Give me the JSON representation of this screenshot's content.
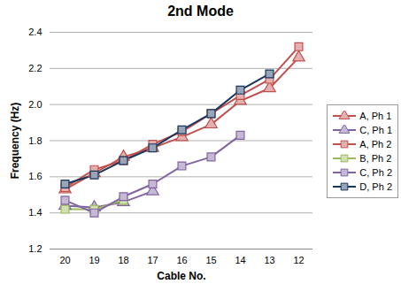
{
  "chart_data": {
    "type": "line",
    "title": "2nd Mode",
    "x_label": "Cable No.",
    "y_label": "Frequency (Hz)",
    "categories": [
      "20",
      "19",
      "18",
      "17",
      "16",
      "15",
      "14",
      "13",
      "12"
    ],
    "series": [
      {
        "name": "A, Ph 1",
        "color": "#c0504d",
        "marker": "triangle",
        "values": [
          1.53,
          1.62,
          1.71,
          1.76,
          1.82,
          1.89,
          2.02,
          2.09,
          2.26
        ]
      },
      {
        "name": "C, Ph 1",
        "color": "#8064a2",
        "marker": "triangle",
        "values": [
          1.44,
          1.43,
          1.46,
          1.52,
          null,
          null,
          null,
          null,
          null
        ]
      },
      {
        "name": "A, Ph 2",
        "color": "#c0504d",
        "marker": "square",
        "values": [
          1.54,
          1.64,
          1.69,
          1.78,
          1.85,
          1.95,
          2.05,
          2.14,
          2.32
        ]
      },
      {
        "name": "B, Ph 2",
        "color": "#9bbb59",
        "marker": "square",
        "values": [
          1.42,
          1.42,
          1.47,
          null,
          null,
          null,
          null,
          null,
          null
        ]
      },
      {
        "name": "C, Ph 2",
        "color": "#8064a2",
        "marker": "square",
        "values": [
          1.47,
          1.4,
          1.49,
          1.56,
          1.66,
          1.71,
          1.83,
          null,
          null
        ]
      },
      {
        "name": "D, Ph 2",
        "color": "#17375e",
        "marker": "square",
        "values": [
          1.56,
          1.61,
          1.69,
          1.76,
          1.86,
          1.95,
          2.08,
          2.17,
          null
        ]
      }
    ],
    "ylim": [
      1.2,
      2.4
    ],
    "yticks": [
      1.2,
      1.4,
      1.6,
      1.8,
      {
        "value": 2,
        "label": "2.0"
      },
      2.2,
      2.4
    ],
    "grid": true,
    "legend": "right"
  }
}
